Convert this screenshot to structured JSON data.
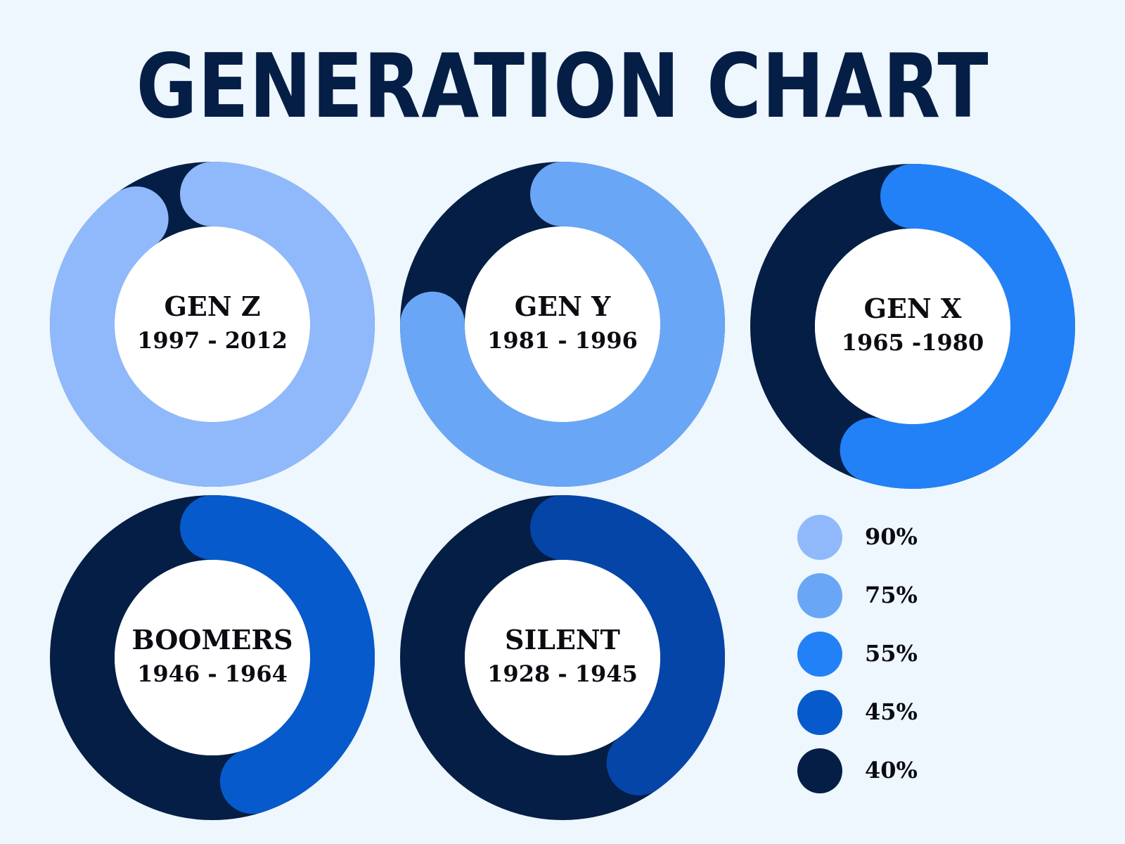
{
  "chart_data": {
    "type": "donut",
    "title": "GENERATION CHART",
    "track_color": "#041e45",
    "charts": [
      {
        "name": "GEN Z",
        "years": "1997 - 2012",
        "value": 90,
        "color": "#8fb9fb"
      },
      {
        "name": "GEN Y",
        "years": "1981 - 1996",
        "value": 75,
        "color": "#6aa6f6"
      },
      {
        "name": "GEN X",
        "years": "1965 -1980",
        "value": 55,
        "color": "#2281f6"
      },
      {
        "name": "BOOMERS",
        "years": "1946 - 1964",
        "value": 45,
        "color": "#065acb"
      },
      {
        "name": "SILENT",
        "years": "1928 - 1945",
        "value": 40,
        "color": "#0645a8"
      }
    ],
    "legend": [
      {
        "label": "90%",
        "color": "#8fb9fb"
      },
      {
        "label": "75%",
        "color": "#6aa6f6"
      },
      {
        "label": "55%",
        "color": "#2281f6"
      },
      {
        "label": "45%",
        "color": "#065acb"
      },
      {
        "label": "40%",
        "color": "#041e45"
      }
    ],
    "legend_position": "bottom-right"
  }
}
